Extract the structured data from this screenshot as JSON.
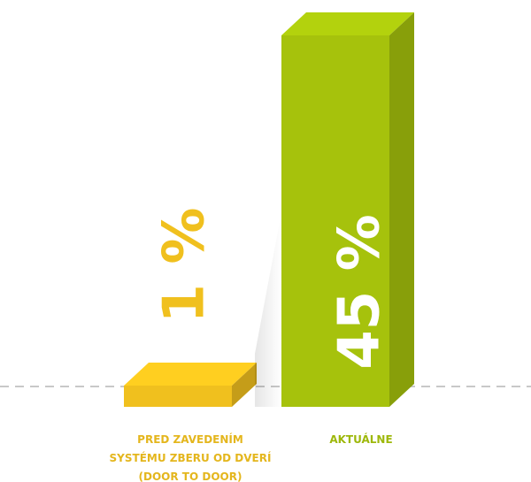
{
  "chart_data": {
    "type": "bar",
    "categories": [
      "PRED ZAVEDENÍM\nSYSTÉMU ZBERU OD DVERÍ\n(DOOR TO DOOR)",
      "AKTUÁLNE"
    ],
    "values": [
      1,
      45
    ],
    "value_labels": [
      "1 %",
      "45 %"
    ],
    "colors": [
      "#f0c01e",
      "#a6c20c"
    ]
  }
}
